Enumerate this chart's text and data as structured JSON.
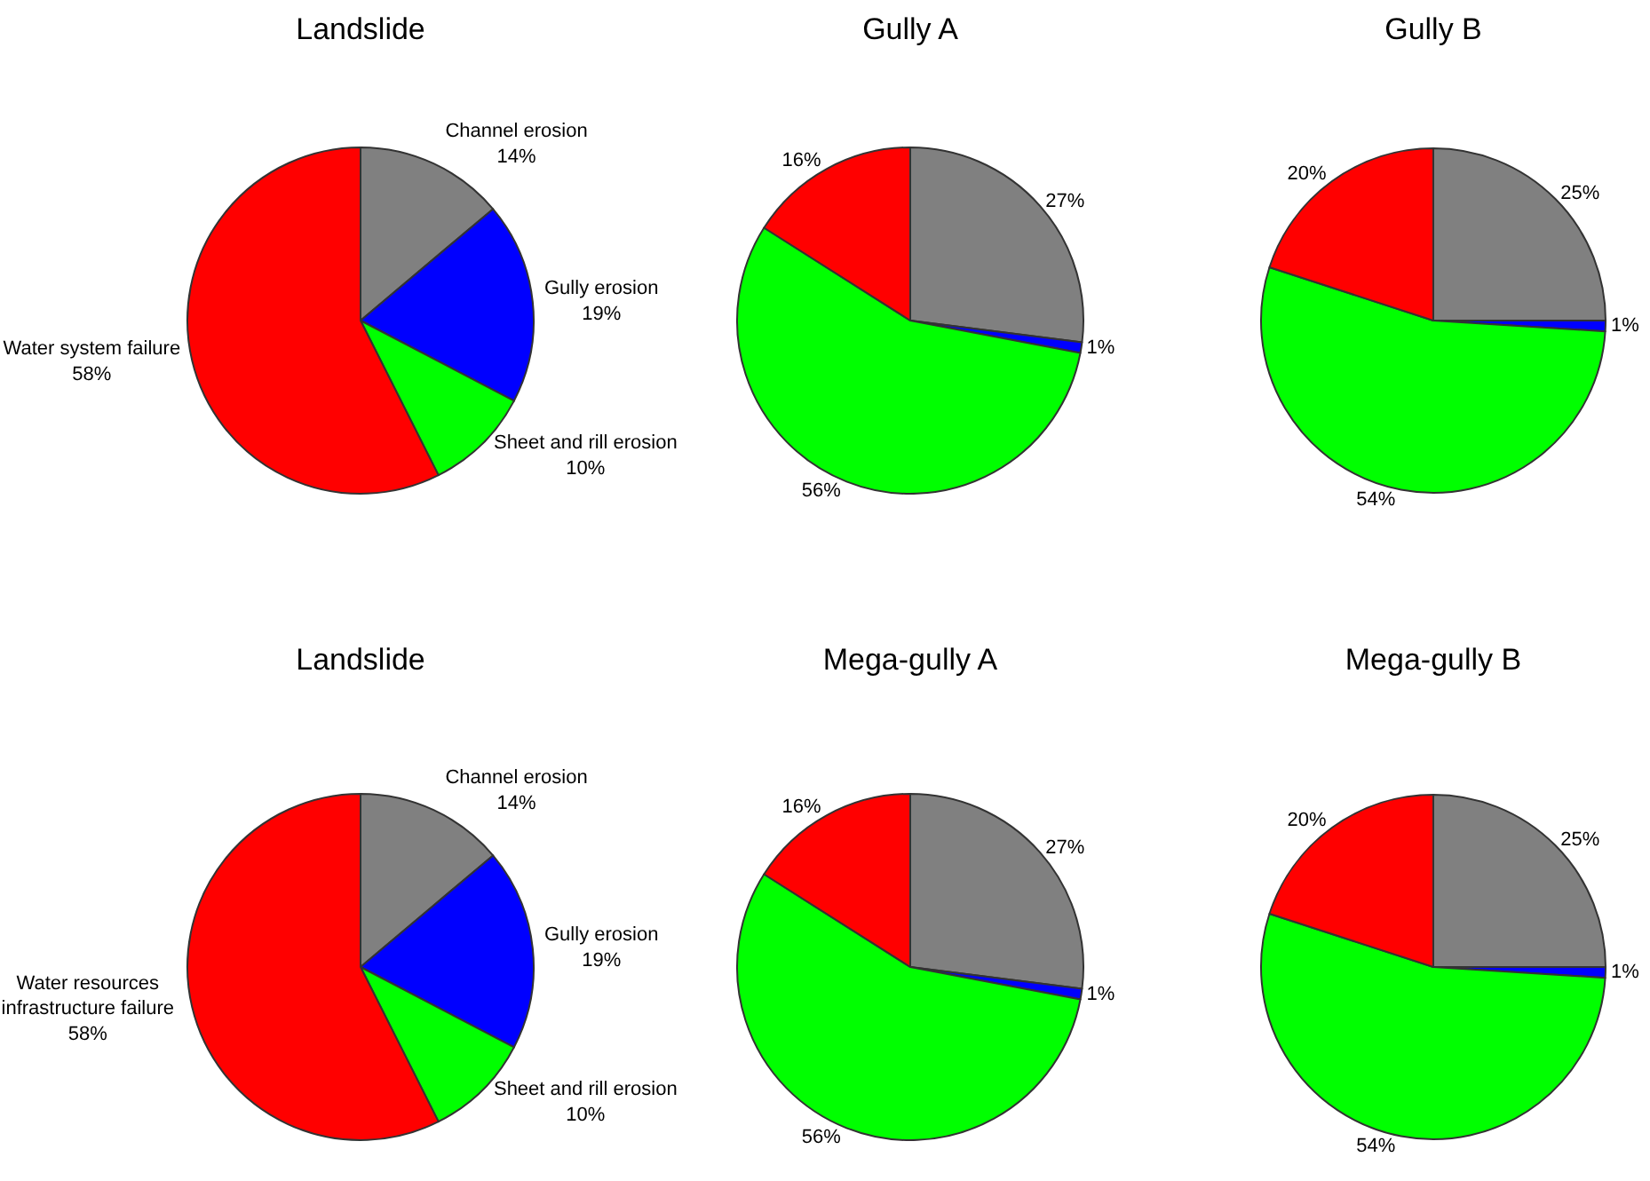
{
  "chart_data": [
    {
      "type": "pie",
      "title": "Landslide",
      "categories": [
        "Channel erosion",
        "Gully erosion",
        "Sheet and rill erosion",
        "Water system failure"
      ],
      "values": [
        14,
        19,
        10,
        58
      ],
      "value_labels": [
        "14%",
        "19%",
        "10%",
        "58%"
      ],
      "colors": [
        "#808080",
        "#0000ff",
        "#00ff00",
        "#ff0000"
      ]
    },
    {
      "type": "pie",
      "title": "Gully A",
      "categories": [
        null,
        null,
        null,
        null
      ],
      "values": [
        27,
        1,
        56,
        16
      ],
      "value_labels": [
        "27%",
        "1%",
        "56%",
        "16%"
      ],
      "colors": [
        "#808080",
        "#0000ff",
        "#00ff00",
        "#ff0000"
      ]
    },
    {
      "type": "pie",
      "title": "Gully B",
      "categories": [
        null,
        null,
        null,
        null
      ],
      "values": [
        25,
        1,
        54,
        20
      ],
      "value_labels": [
        "25%",
        "1%",
        "54%",
        "20%"
      ],
      "colors": [
        "#808080",
        "#0000ff",
        "#00ff00",
        "#ff0000"
      ]
    },
    {
      "type": "pie",
      "title": "Landslide",
      "categories": [
        "Channel erosion",
        "Gully erosion",
        "Sheet and rill erosion",
        "Water resources\ninfrastructure failure"
      ],
      "values": [
        14,
        19,
        10,
        58
      ],
      "value_labels": [
        "14%",
        "19%",
        "10%",
        "58%"
      ],
      "colors": [
        "#808080",
        "#0000ff",
        "#00ff00",
        "#ff0000"
      ]
    },
    {
      "type": "pie",
      "title": "Mega-gully A",
      "categories": [
        null,
        null,
        null,
        null
      ],
      "values": [
        27,
        1,
        56,
        16
      ],
      "value_labels": [
        "27%",
        "1%",
        "56%",
        "16%"
      ],
      "colors": [
        "#808080",
        "#0000ff",
        "#00ff00",
        "#ff0000"
      ]
    },
    {
      "type": "pie",
      "title": "Mega-gully B",
      "categories": [
        null,
        null,
        null,
        null
      ],
      "values": [
        25,
        1,
        54,
        20
      ],
      "value_labels": [
        "25%",
        "1%",
        "54%",
        "20%"
      ],
      "colors": [
        "#808080",
        "#0000ff",
        "#00ff00",
        "#ff0000"
      ]
    }
  ]
}
